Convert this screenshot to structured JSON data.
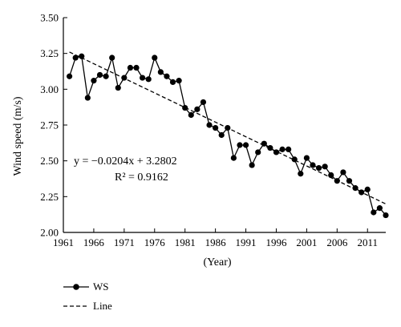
{
  "chart_data": {
    "type": "line",
    "xlabel": "(Year)",
    "ylabel": "Wind speed (m/s)",
    "xlim": [
      1961,
      2014
    ],
    "ylim": [
      2.0,
      3.5
    ],
    "xticks": [
      1961,
      1966,
      1971,
      1976,
      1981,
      1986,
      1991,
      1996,
      2001,
      2006,
      2011
    ],
    "yticks": [
      "2.00",
      "2.25",
      "2.50",
      "2.75",
      "3.00",
      "3.25",
      "3.50"
    ],
    "grid": false,
    "legend_position": "bottom-left",
    "series": [
      {
        "name": "WS",
        "style": "solid line with filled circle markers",
        "x": [
          1962,
          1963,
          1964,
          1965,
          1966,
          1967,
          1968,
          1969,
          1970,
          1971,
          1972,
          1973,
          1974,
          1975,
          1976,
          1977,
          1978,
          1979,
          1980,
          1981,
          1982,
          1983,
          1984,
          1985,
          1986,
          1987,
          1988,
          1989,
          1990,
          1991,
          1992,
          1993,
          1994,
          1995,
          1996,
          1997,
          1998,
          1999,
          2000,
          2001,
          2002,
          2003,
          2004,
          2005,
          2006,
          2007,
          2008,
          2009,
          2010,
          2011,
          2012,
          2013,
          2014
        ],
        "values": [
          3.09,
          3.22,
          3.23,
          2.94,
          3.06,
          3.1,
          3.09,
          3.22,
          3.01,
          3.08,
          3.15,
          3.15,
          3.08,
          3.07,
          3.22,
          3.12,
          3.09,
          3.05,
          3.06,
          2.87,
          2.82,
          2.86,
          2.91,
          2.75,
          2.73,
          2.68,
          2.73,
          2.52,
          2.61,
          2.61,
          2.47,
          2.56,
          2.62,
          2.59,
          2.56,
          2.58,
          2.58,
          2.51,
          2.41,
          2.52,
          2.47,
          2.45,
          2.46,
          2.4,
          2.36,
          2.42,
          2.36,
          2.31,
          2.28,
          2.3,
          2.14,
          2.17,
          2.12
        ]
      },
      {
        "name": "Line",
        "style": "dashed linear trend",
        "slope": -0.0204,
        "intercept": 3.2802
      }
    ],
    "annotations": {
      "equation": "y = −0.0204x + 3.2802",
      "r_squared": "R² = 0.9162"
    },
    "colors": {
      "line": "#000000",
      "marker": "#000000",
      "background": "#ffffff"
    }
  }
}
